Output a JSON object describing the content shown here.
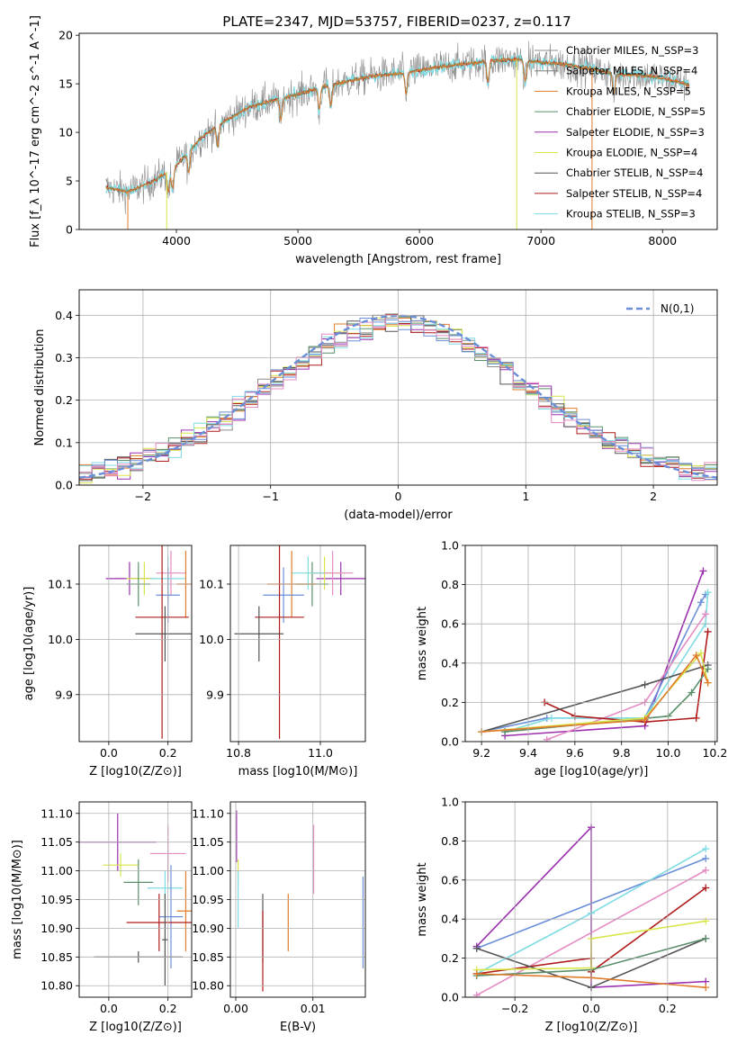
{
  "figure_title": "PLATE=2347, MJD=53757, FIBERID=0237, z=0.117",
  "colors": {
    "cmiles": "#8c8c8c",
    "smiles": "#7f7f7f",
    "kmiles": "#e07b2a",
    "celodie": "#5a8f6a",
    "selodie": "#9b2fae",
    "kelodie": "#d8e64a",
    "cstelib": "#555555",
    "sstelib": "#b01c1c",
    "kstelib": "#7fdce3",
    "blue": "#6a8fd8",
    "pink": "#e58bc4"
  },
  "chart_data": [
    {
      "type": "line",
      "id": "spectrum",
      "xlabel": "wavelength [Angstrom, rest frame]",
      "ylabel": "Flux [f_λ 10^-17 erg cm^-2 s^-1 A^-1]",
      "xlim": [
        3200,
        8450
      ],
      "ylim": [
        0,
        20.2
      ],
      "xticks": [
        4000,
        5000,
        6000,
        7000,
        8000
      ],
      "yticks": [
        0,
        5,
        10,
        15,
        20
      ],
      "legend_position": "right",
      "legend": [
        {
          "label": "Chabrier MILES, N_SSP=3",
          "color": "cmiles"
        },
        {
          "label": "Salpeter MILES, N_SSP=4",
          "color": "smiles"
        },
        {
          "label": "Kroupa MILES, N_SSP=5",
          "color": "kmiles"
        },
        {
          "label": "Chabrier ELODIE, N_SSP=5",
          "color": "celodie"
        },
        {
          "label": "Salpeter ELODIE, N_SSP=3",
          "color": "selodie"
        },
        {
          "label": "Kroupa ELODIE, N_SSP=4",
          "color": "kelodie"
        },
        {
          "label": "Chabrier STELIB, N_SSP=4",
          "color": "cstelib"
        },
        {
          "label": "Salpeter STELIB, N_SSP=4",
          "color": "sstelib"
        },
        {
          "label": "Kroupa STELIB, N_SSP=3",
          "color": "kstelib"
        }
      ],
      "continuum": {
        "x": [
          3420,
          3600,
          3800,
          4000,
          4200,
          4400,
          4600,
          4800,
          5000,
          5200,
          5400,
          5600,
          5800,
          6000,
          6200,
          6400,
          6600,
          6800,
          7000,
          7200,
          7400,
          7600,
          7800,
          8000,
          8220
        ],
        "y": [
          4.3,
          3.9,
          4.9,
          6.6,
          9.4,
          11.2,
          12.6,
          13.3,
          13.9,
          14.7,
          15.2,
          15.8,
          16.0,
          16.4,
          16.8,
          17.1,
          17.4,
          17.5,
          17.2,
          17.0,
          16.6,
          16.0,
          15.9,
          15.6,
          14.9
        ]
      }
    },
    {
      "type": "line",
      "id": "residuals",
      "xlabel": "(data-model)/error",
      "ylabel": "Normed distribution",
      "xlim": [
        -2.5,
        2.5
      ],
      "ylim": [
        0,
        0.46
      ],
      "xticks": [
        -2,
        -1,
        0,
        1,
        2
      ],
      "yticks": [
        0.0,
        0.1,
        0.2,
        0.3,
        0.4
      ],
      "legend_position": "top-right",
      "legend": [
        {
          "label": "N(0,1)",
          "color": "blue",
          "style": "dashed"
        }
      ],
      "histogram_bin_width": 0.1,
      "histogram_series": [
        "cmiles",
        "kmiles",
        "celodie",
        "selodie",
        "kelodie",
        "cstelib",
        "sstelib",
        "kstelib",
        "blue",
        "pink"
      ]
    },
    {
      "type": "scatter",
      "id": "age_vs_Z",
      "xlabel": "Z [log10(Z/Z⊙)]",
      "ylabel": "age  [log10(age/yr)]",
      "xlim": [
        -0.1,
        0.28
      ],
      "ylim": [
        9.815,
        10.17
      ],
      "xticks": [
        0.0,
        0.2
      ],
      "yticks": [
        9.9,
        10.0,
        10.1
      ],
      "points": [
        {
          "x": 0.07,
          "y": 10.11,
          "xerr": 0.08,
          "yerr": 0.03,
          "color": "selodie"
        },
        {
          "x": 0.12,
          "y": 10.11,
          "xerr": 0.06,
          "yerr": 0.03,
          "color": "kelodie"
        },
        {
          "x": 0.1,
          "y": 10.1,
          "xerr": 0.04,
          "yerr": 0.04,
          "color": "celodie"
        },
        {
          "x": 0.21,
          "y": 10.12,
          "xerr": 0.05,
          "yerr": 0.04,
          "color": "pink"
        },
        {
          "x": 0.2,
          "y": 10.11,
          "xerr": 0.06,
          "yerr": 0.04,
          "color": "kstelib"
        },
        {
          "x": 0.26,
          "y": 10.1,
          "xerr": 0.03,
          "yerr": 0.06,
          "color": "kmiles"
        },
        {
          "x": 0.2,
          "y": 10.08,
          "xerr": 0.04,
          "yerr": 0.05,
          "color": "blue"
        },
        {
          "x": 0.18,
          "y": 10.04,
          "xerr": 0.09,
          "yerr": 0.22,
          "color": "sstelib"
        },
        {
          "x": 0.19,
          "y": 10.01,
          "xerr": 0.1,
          "yerr": 0.05,
          "color": "cstelib"
        }
      ]
    },
    {
      "type": "scatter",
      "id": "age_vs_mass",
      "xlabel": "mass [log10(M/M⊙)]",
      "ylabel": "",
      "xlim": [
        10.78,
        11.11
      ],
      "ylim": [
        9.815,
        10.17
      ],
      "xticks": [
        10.8,
        11.0
      ],
      "yticks": [
        9.9,
        10.0,
        10.1
      ],
      "points": [
        {
          "x": 11.05,
          "y": 10.11,
          "xerr": 0.06,
          "yerr": 0.03,
          "color": "selodie"
        },
        {
          "x": 11.01,
          "y": 10.12,
          "xerr": 0.05,
          "yerr": 0.03,
          "color": "kelodie"
        },
        {
          "x": 10.98,
          "y": 10.1,
          "xerr": 0.04,
          "yerr": 0.04,
          "color": "celodie"
        },
        {
          "x": 11.03,
          "y": 10.12,
          "xerr": 0.05,
          "yerr": 0.04,
          "color": "pink"
        },
        {
          "x": 10.97,
          "y": 10.12,
          "xerr": 0.04,
          "yerr": 0.03,
          "color": "kstelib"
        },
        {
          "x": 10.93,
          "y": 10.1,
          "xerr": 0.06,
          "yerr": 0.06,
          "color": "kmiles"
        },
        {
          "x": 10.91,
          "y": 10.08,
          "xerr": 0.05,
          "yerr": 0.05,
          "color": "blue"
        },
        {
          "x": 10.9,
          "y": 10.04,
          "xerr": 0.06,
          "yerr": 0.22,
          "color": "sstelib"
        },
        {
          "x": 10.85,
          "y": 10.01,
          "xerr": 0.06,
          "yerr": 0.05,
          "color": "cstelib"
        }
      ]
    },
    {
      "type": "line",
      "id": "mass_weight_vs_age",
      "xlabel": "age  [log10(age/yr)]",
      "ylabel": "mass weight",
      "xlim": [
        9.13,
        10.21
      ],
      "ylim": [
        0,
        1.0
      ],
      "xticks": [
        9.2,
        9.4,
        9.6,
        9.8,
        10.0,
        10.2
      ],
      "yticks": [
        0.0,
        0.2,
        0.4,
        0.6,
        0.8,
        1.0
      ],
      "series": [
        {
          "color": "selodie",
          "x": [
            9.3,
            9.9,
            10.15
          ],
          "y": [
            0.03,
            0.08,
            0.87
          ]
        },
        {
          "color": "blue",
          "x": [
            9.2,
            9.48,
            9.9,
            10.14,
            10.16
          ],
          "y": [
            0.05,
            0.12,
            0.12,
            0.71,
            0.75
          ]
        },
        {
          "color": "kstelib",
          "x": [
            9.3,
            9.5,
            9.9,
            10.16,
            10.17
          ],
          "y": [
            0.05,
            0.12,
            0.12,
            0.6,
            0.76
          ]
        },
        {
          "color": "pink",
          "x": [
            9.48,
            9.9,
            10.16
          ],
          "y": [
            0.01,
            0.2,
            0.65
          ]
        },
        {
          "color": "sstelib",
          "x": [
            9.47,
            9.6,
            9.9,
            10.12,
            10.17
          ],
          "y": [
            0.2,
            0.13,
            0.1,
            0.12,
            0.56
          ]
        },
        {
          "color": "cstelib",
          "x": [
            9.2,
            9.9,
            10.17
          ],
          "y": [
            0.05,
            0.29,
            0.39
          ]
        },
        {
          "color": "celodie",
          "x": [
            9.3,
            10.0,
            10.1,
            10.17
          ],
          "y": [
            0.05,
            0.13,
            0.25,
            0.37
          ]
        },
        {
          "color": "kelodie",
          "x": [
            9.2,
            9.9,
            10.14,
            10.17
          ],
          "y": [
            0.05,
            0.12,
            0.45,
            0.3
          ]
        },
        {
          "color": "kmiles",
          "x": [
            9.2,
            9.9,
            10.12,
            10.17
          ],
          "y": [
            0.05,
            0.11,
            0.44,
            0.3
          ]
        }
      ]
    },
    {
      "type": "scatter",
      "id": "mass_vs_Z",
      "xlabel": "Z [log10(Z/Z⊙)]",
      "ylabel": "mass [log10(M/M⊙)]",
      "xlim": [
        -0.1,
        0.28
      ],
      "ylim": [
        10.78,
        11.12
      ],
      "xticks": [
        0.0,
        0.2
      ],
      "yticks": [
        10.8,
        10.85,
        10.9,
        10.95,
        11.0,
        11.05,
        11.1
      ],
      "points": [
        {
          "x": 0.03,
          "y": 11.05,
          "xerr": 0.13,
          "yerr": 0.05,
          "color": "selodie"
        },
        {
          "x": 0.04,
          "y": 11.01,
          "xerr": 0.06,
          "yerr": 0.02,
          "color": "kelodie"
        },
        {
          "x": 0.1,
          "y": 10.98,
          "xerr": 0.05,
          "yerr": 0.04,
          "color": "celodie"
        },
        {
          "x": 0.2,
          "y": 11.03,
          "xerr": 0.06,
          "yerr": 0.05,
          "color": "pink"
        },
        {
          "x": 0.19,
          "y": 10.97,
          "xerr": 0.06,
          "yerr": 0.03,
          "color": "kstelib"
        },
        {
          "x": 0.26,
          "y": 10.93,
          "xerr": 0.03,
          "yerr": 0.07,
          "color": "kmiles"
        },
        {
          "x": 0.21,
          "y": 10.92,
          "xerr": 0.04,
          "yerr": 0.09,
          "color": "blue"
        },
        {
          "x": 0.17,
          "y": 10.91,
          "xerr": 0.11,
          "yerr": 0.05,
          "color": "sstelib"
        },
        {
          "x": 0.1,
          "y": 10.85,
          "xerr": 0.15,
          "yerr": 0.01,
          "color": "cstelib"
        },
        {
          "x": 0.19,
          "y": 10.88,
          "xerr": 0.01,
          "yerr": 0.08,
          "color": "cstelib"
        }
      ]
    },
    {
      "type": "scatter",
      "id": "mass_vs_EBV",
      "xlabel": "E(B-V)",
      "ylabel": "",
      "xlim": [
        -0.0007,
        0.0168
      ],
      "ylim": [
        10.78,
        11.12
      ],
      "xticks": [
        0.0,
        0.01
      ],
      "yticks": [
        10.8,
        10.85,
        10.9,
        10.95,
        11.0,
        11.05,
        11.1
      ],
      "points": [
        {
          "x": 0.0001,
          "y": 11.06,
          "xerr": 0,
          "yerr": 0.045,
          "color": "selodie"
        },
        {
          "x": 0.0003,
          "y": 11.0,
          "xerr": 0,
          "yerr": 0.02,
          "color": "kelodie"
        },
        {
          "x": 0.0003,
          "y": 10.95,
          "xerr": 0,
          "yerr": 0.05,
          "color": "kstelib"
        },
        {
          "x": 0.0035,
          "y": 10.9,
          "xerr": 0,
          "yerr": 0.06,
          "color": "cstelib"
        },
        {
          "x": 0.0035,
          "y": 10.86,
          "xerr": 0,
          "yerr": 0.07,
          "color": "sstelib"
        },
        {
          "x": 0.0068,
          "y": 10.91,
          "xerr": 0,
          "yerr": 0.05,
          "color": "kmiles"
        },
        {
          "x": 0.0101,
          "y": 11.02,
          "xerr": 0,
          "yerr": 0.06,
          "color": "pink"
        },
        {
          "x": 0.0165,
          "y": 10.91,
          "xerr": 0,
          "yerr": 0.08,
          "color": "blue"
        }
      ]
    },
    {
      "type": "line",
      "id": "mass_weight_vs_Z",
      "xlabel": "Z [log10(Z/Z⊙)]",
      "ylabel": "mass weight",
      "xlim": [
        -0.33,
        0.33
      ],
      "ylim": [
        0,
        1.0
      ],
      "xticks": [
        -0.2,
        0.0,
        0.2
      ],
      "yticks": [
        0.0,
        0.2,
        0.4,
        0.6,
        0.8,
        1.0
      ],
      "series": [
        {
          "color": "selodie",
          "x": [
            -0.3,
            0.0,
            0.0,
            0.3
          ],
          "y": [
            0.26,
            0.87,
            0.05,
            0.08
          ]
        },
        {
          "color": "blue",
          "x": [
            -0.3,
            0.3
          ],
          "y": [
            0.25,
            0.71
          ]
        },
        {
          "color": "kstelib",
          "x": [
            -0.3,
            0.0,
            0.3
          ],
          "y": [
            0.12,
            0.43,
            0.76
          ]
        },
        {
          "color": "pink",
          "x": [
            -0.3,
            0.3
          ],
          "y": [
            0.01,
            0.65
          ]
        },
        {
          "color": "sstelib",
          "x": [
            -0.3,
            0.0,
            0.0,
            0.3
          ],
          "y": [
            0.12,
            0.2,
            0.13,
            0.56
          ]
        },
        {
          "color": "cstelib",
          "x": [
            -0.3,
            0.0,
            0.3
          ],
          "y": [
            0.25,
            0.05,
            0.3
          ]
        },
        {
          "color": "celodie",
          "x": [
            -0.3,
            0.0,
            0.3
          ],
          "y": [
            0.11,
            0.14,
            0.3
          ]
        },
        {
          "color": "kelodie",
          "x": [
            -0.3,
            0.0,
            0.0,
            0.3
          ],
          "y": [
            0.14,
            0.15,
            0.3,
            0.39
          ]
        },
        {
          "color": "kmiles",
          "x": [
            -0.3,
            0.0,
            0.3
          ],
          "y": [
            0.12,
            0.1,
            0.05
          ]
        }
      ]
    }
  ]
}
